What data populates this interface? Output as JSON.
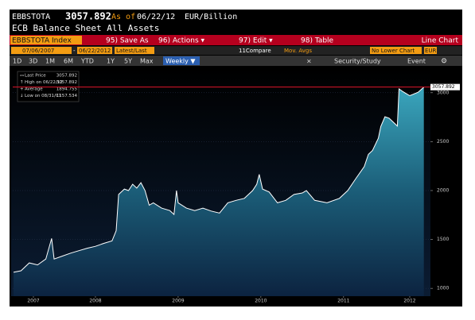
{
  "header": {
    "ticker": "EBBSTOTA",
    "price": "3057.892",
    "as_of_label": "As of",
    "date": "06/22/12",
    "units": "EUR/Billion",
    "description": "ECB Balance Sheet All Assets"
  },
  "toolbar": {
    "security": "EBBSTOTA Index",
    "buttons": [
      "95) Save As",
      "96) Actions ▾",
      "97) Edit ▾",
      "98) Table"
    ],
    "chart_type": "Line Chart"
  },
  "controls": {
    "start_date": "07/06/2007",
    "end_date": "06/22/2012",
    "price_field": "Latest/Last",
    "compare": "11Compare",
    "mov_avgs": "Mov. Avgs",
    "lower_chart": "No Lower Chart",
    "currency": "EUR"
  },
  "periods": [
    "1D",
    "3D",
    "1M",
    "6M",
    "YTD",
    "1Y",
    "5Y",
    "Max"
  ],
  "frequency": "Weekly ▼",
  "tools": [
    "Security/Study",
    "Event"
  ],
  "chart_data": {
    "type": "area",
    "legend": [
      {
        "label": "Last Price",
        "value": 3057.892
      },
      {
        "label": "High on 06/22/12",
        "value": 3057.892
      },
      {
        "label": "Average",
        "value": 1894.755
      },
      {
        "label": "Low on 08/31/07",
        "value": 1157.534
      }
    ],
    "last_price": 3057.892,
    "x": [
      2007.51,
      2007.6,
      2007.7,
      2007.8,
      2007.9,
      2007.97,
      2008.0,
      2008.1,
      2008.2,
      2008.3,
      2008.4,
      2008.5,
      2008.6,
      2008.7,
      2008.75,
      2008.78,
      2008.85,
      2008.9,
      2008.95,
      2009.0,
      2009.05,
      2009.1,
      2009.15,
      2009.2,
      2009.3,
      2009.4,
      2009.45,
      2009.48,
      2009.5,
      2009.6,
      2009.7,
      2009.8,
      2009.9,
      2010.0,
      2010.1,
      2010.2,
      2010.3,
      2010.35,
      2010.4,
      2010.45,
      2010.48,
      2010.52,
      2010.6,
      2010.7,
      2010.8,
      2010.9,
      2011.0,
      2011.05,
      2011.15,
      2011.3,
      2011.45,
      2011.55,
      2011.65,
      2011.75,
      2011.8,
      2011.85,
      2011.92,
      2011.95,
      2012.0,
      2012.05,
      2012.1,
      2012.15,
      2012.17,
      2012.22,
      2012.3,
      2012.4,
      2012.47
    ],
    "series": [
      {
        "name": "Last Price",
        "color": "#ffffff",
        "values": [
          1164,
          1180,
          1260,
          1240,
          1300,
          1510,
          1300,
          1330,
          1360,
          1385,
          1410,
          1430,
          1460,
          1485,
          1590,
          1960,
          2015,
          2000,
          2065,
          2025,
          2080,
          2000,
          1850,
          1875,
          1820,
          1795,
          1755,
          2000,
          1875,
          1820,
          1795,
          1820,
          1790,
          1770,
          1875,
          1900,
          1920,
          1960,
          2000,
          2065,
          2165,
          2015,
          1985,
          1875,
          1900,
          1960,
          1975,
          2000,
          1900,
          1875,
          1920,
          2000,
          2125,
          2245,
          2370,
          2410,
          2535,
          2655,
          2755,
          2740,
          2700,
          2660,
          3040,
          3010,
          2970,
          3005,
          3057.892
        ]
      }
    ],
    "xlim": [
      2007.5,
      2012.55
    ],
    "xticks": [
      {
        "value": 2007.75,
        "label": "2007"
      },
      {
        "value": 2008.5,
        "label": "2008"
      },
      {
        "value": 2009.5,
        "label": "2009"
      },
      {
        "value": 2010.5,
        "label": "2010"
      },
      {
        "value": 2011.5,
        "label": "2011"
      },
      {
        "value": 2012.3,
        "label": "2012"
      }
    ],
    "ylim": [
      920,
      3250
    ],
    "yticks": [
      1000,
      1500,
      2000,
      2500,
      3000
    ],
    "grid": true
  }
}
